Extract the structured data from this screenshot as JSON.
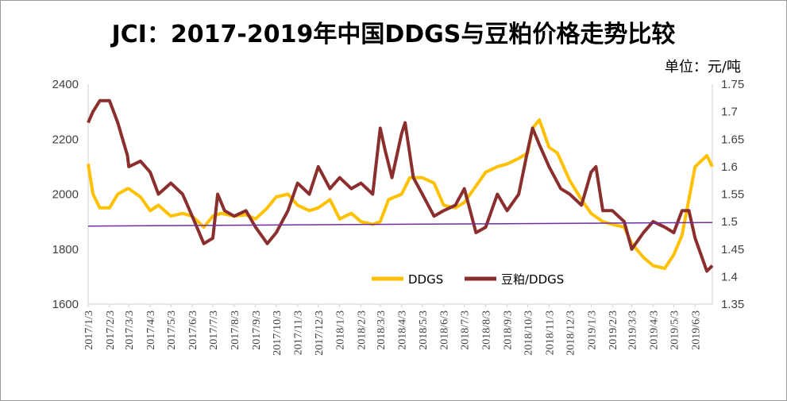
{
  "chart_data": {
    "type": "line",
    "title": "JCI：2017-2019年中国DDGS与豆粕价格走势比较",
    "unit_label": "单位：元/吨",
    "y_left": {
      "min": 1600,
      "max": 2400,
      "ticks": [
        "2400",
        "2200",
        "2000",
        "1800",
        "1600"
      ]
    },
    "y_right": {
      "min": 1.35,
      "max": 1.75,
      "ticks": [
        "1.75",
        "1.7",
        "1.65",
        "1.6",
        "1.55",
        "1.5",
        "1.45",
        "1.4",
        "1.35"
      ]
    },
    "x_ticks": [
      "2017/1/3",
      "2017/2/3",
      "2017/3/3",
      "2017/4/3",
      "2017/5/3",
      "2017/6/3",
      "2017/7/3",
      "2017/8/3",
      "2017/9/3",
      "2017/10/3",
      "2017/11/3",
      "2017/12/3",
      "2018/1/3",
      "2018/2/3",
      "2018/3/3",
      "2018/4/3",
      "2018/5/3",
      "2018/6/3",
      "2018/7/3",
      "2018/8/3",
      "2018/9/3",
      "2018/10/3",
      "2018/11/3",
      "2018/12/3",
      "2019/1/3",
      "2019/2/3",
      "2019/3/3",
      "2019/4/3",
      "2019/5/3",
      "2019/6/3"
    ],
    "legend_position": "lower-right inside plot",
    "grid": false,
    "series": [
      {
        "name": "DDGS",
        "axis": "left",
        "color": "#FFC000",
        "x": [
          "2017/1/3",
          "2017/1/10",
          "2017/1/20",
          "2017/2/3",
          "2017/2/15",
          "2017/3/1",
          "2017/3/3",
          "2017/3/20",
          "2017/4/3",
          "2017/4/15",
          "2017/5/3",
          "2017/5/20",
          "2017/6/3",
          "2017/6/20",
          "2017/7/3",
          "2017/7/15",
          "2017/8/3",
          "2017/8/20",
          "2017/9/3",
          "2017/9/20",
          "2017/10/3",
          "2017/10/20",
          "2017/11/3",
          "2017/11/20",
          "2017/12/3",
          "2017/12/20",
          "2018/1/3",
          "2018/1/20",
          "2018/2/3",
          "2018/2/20",
          "2018/3/3",
          "2018/3/15",
          "2018/4/3",
          "2018/4/15",
          "2018/5/3",
          "2018/5/20",
          "2018/6/3",
          "2018/6/20",
          "2018/7/3",
          "2018/7/20",
          "2018/8/3",
          "2018/8/20",
          "2018/9/3",
          "2018/9/20",
          "2018/10/3",
          "2018/10/10",
          "2018/10/20",
          "2018/11/3",
          "2018/11/15",
          "2018/12/3",
          "2018/12/20",
          "2019/1/3",
          "2019/1/20",
          "2019/2/3",
          "2019/2/20",
          "2019/3/3",
          "2019/3/20",
          "2019/4/3",
          "2019/4/20",
          "2019/5/3",
          "2019/5/15",
          "2019/6/3",
          "2019/6/20",
          "2019/6/28"
        ],
        "values": [
          2110,
          2000,
          1950,
          1950,
          2000,
          2020,
          2020,
          1990,
          1940,
          1960,
          1920,
          1930,
          1920,
          1880,
          1920,
          1930,
          1920,
          1925,
          1910,
          1950,
          1990,
          2000,
          1960,
          1940,
          1950,
          1980,
          1910,
          1930,
          1900,
          1890,
          1900,
          1980,
          2000,
          2060,
          2060,
          2040,
          1960,
          1950,
          1970,
          2030,
          2080,
          2100,
          2110,
          2130,
          2150,
          2240,
          2270,
          2170,
          2150,
          2050,
          1980,
          1930,
          1900,
          1890,
          1880,
          1820,
          1770,
          1740,
          1730,
          1780,
          1850,
          2100,
          2140,
          2100
        ]
      },
      {
        "name": "豆粕/DDGS",
        "axis": "right",
        "color": "#8B2E2E",
        "x": [
          "2017/1/3",
          "2017/1/10",
          "2017/1/20",
          "2017/2/3",
          "2017/2/15",
          "2017/3/1",
          "2017/3/3",
          "2017/3/20",
          "2017/4/3",
          "2017/4/15",
          "2017/5/3",
          "2017/5/20",
          "2017/6/3",
          "2017/6/20",
          "2017/7/3",
          "2017/7/10",
          "2017/7/20",
          "2017/8/3",
          "2017/8/20",
          "2017/9/3",
          "2017/9/20",
          "2017/10/3",
          "2017/10/20",
          "2017/11/3",
          "2017/11/20",
          "2017/12/3",
          "2017/12/20",
          "2018/1/3",
          "2018/1/20",
          "2018/2/3",
          "2018/2/20",
          "2018/3/3",
          "2018/3/10",
          "2018/3/20",
          "2018/4/3",
          "2018/4/8",
          "2018/4/20",
          "2018/5/3",
          "2018/5/20",
          "2018/6/3",
          "2018/6/20",
          "2018/7/3",
          "2018/7/20",
          "2018/8/3",
          "2018/8/20",
          "2018/9/3",
          "2018/9/20",
          "2018/10/3",
          "2018/10/10",
          "2018/10/20",
          "2018/11/3",
          "2018/11/20",
          "2018/12/3",
          "2018/12/20",
          "2019/1/3",
          "2019/1/10",
          "2019/1/20",
          "2019/2/3",
          "2019/2/20",
          "2019/3/3",
          "2019/3/20",
          "2019/4/3",
          "2019/4/20",
          "2019/5/3",
          "2019/5/15",
          "2019/5/25",
          "2019/6/3",
          "2019/6/20",
          "2019/6/28"
        ],
        "values": [
          1.68,
          1.7,
          1.72,
          1.72,
          1.68,
          1.62,
          1.6,
          1.61,
          1.59,
          1.55,
          1.57,
          1.55,
          1.51,
          1.46,
          1.47,
          1.55,
          1.52,
          1.51,
          1.52,
          1.49,
          1.46,
          1.48,
          1.52,
          1.57,
          1.55,
          1.6,
          1.56,
          1.58,
          1.56,
          1.57,
          1.55,
          1.67,
          1.63,
          1.58,
          1.66,
          1.68,
          1.58,
          1.55,
          1.51,
          1.52,
          1.53,
          1.56,
          1.48,
          1.49,
          1.55,
          1.52,
          1.55,
          1.63,
          1.67,
          1.64,
          1.6,
          1.56,
          1.55,
          1.53,
          1.59,
          1.6,
          1.52,
          1.52,
          1.5,
          1.45,
          1.48,
          1.5,
          1.49,
          1.48,
          1.52,
          1.52,
          1.47,
          1.41,
          1.42
        ]
      },
      {
        "name": "",
        "axis": "left",
        "color": "#7030A0",
        "x": [
          "2017/1/3",
          "2019/6/28"
        ],
        "values": [
          1884,
          1897
        ]
      }
    ]
  },
  "legend": {
    "ddgs": "DDGS",
    "ratio": "豆粕/DDGS"
  }
}
